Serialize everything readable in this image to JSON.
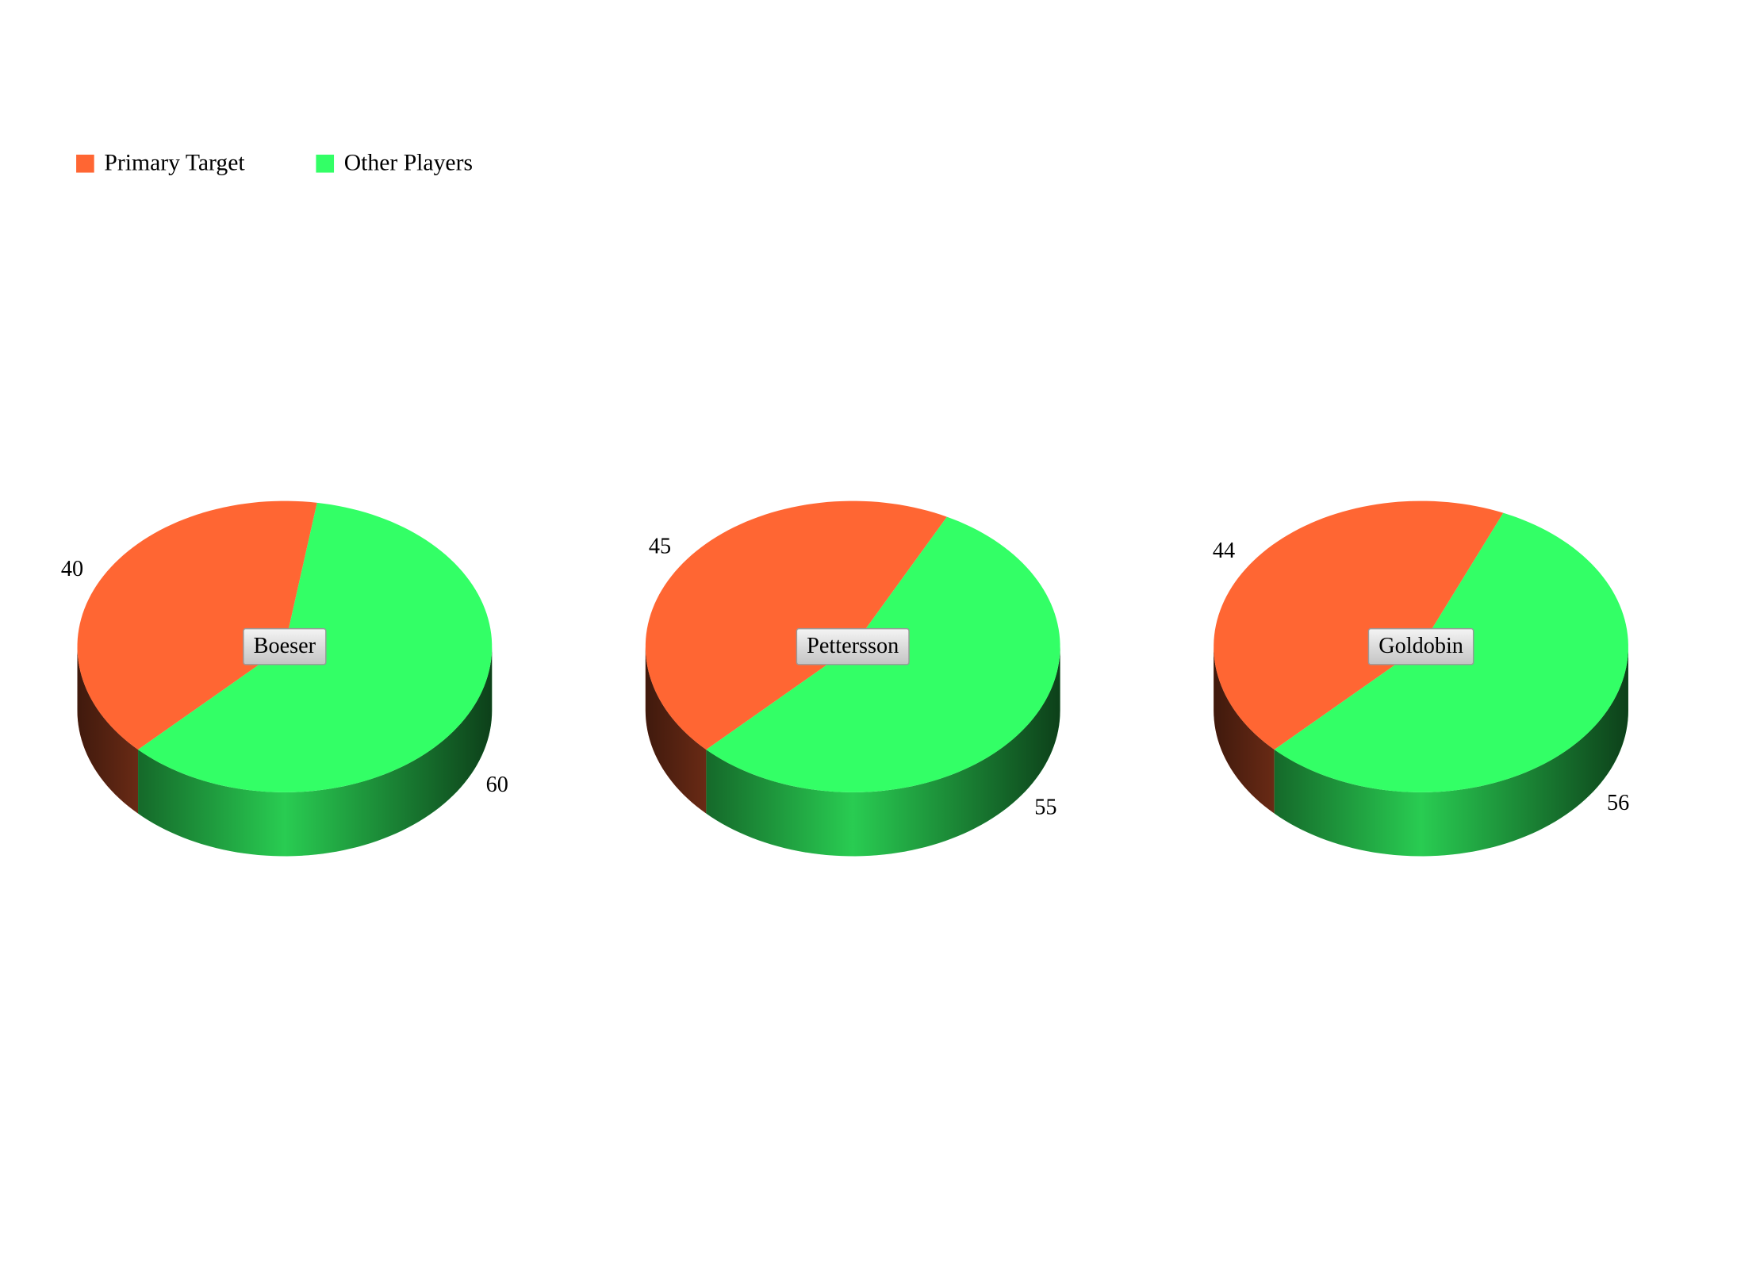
{
  "chart_data": [
    {
      "type": "pie",
      "title": "Boeser",
      "categories": [
        "Primary Target",
        "Other Players"
      ],
      "values": [
        40,
        60
      ],
      "colors": [
        "#ff6633",
        "#33ff66"
      ]
    },
    {
      "type": "pie",
      "title": "Pettersson",
      "categories": [
        "Primary Target",
        "Other Players"
      ],
      "values": [
        45,
        55
      ],
      "colors": [
        "#ff6633",
        "#33ff66"
      ]
    },
    {
      "type": "pie",
      "title": "Goldobin",
      "categories": [
        "Primary Target",
        "Other Players"
      ],
      "values": [
        44,
        56
      ],
      "colors": [
        "#ff6633",
        "#33ff66"
      ]
    }
  ]
}
